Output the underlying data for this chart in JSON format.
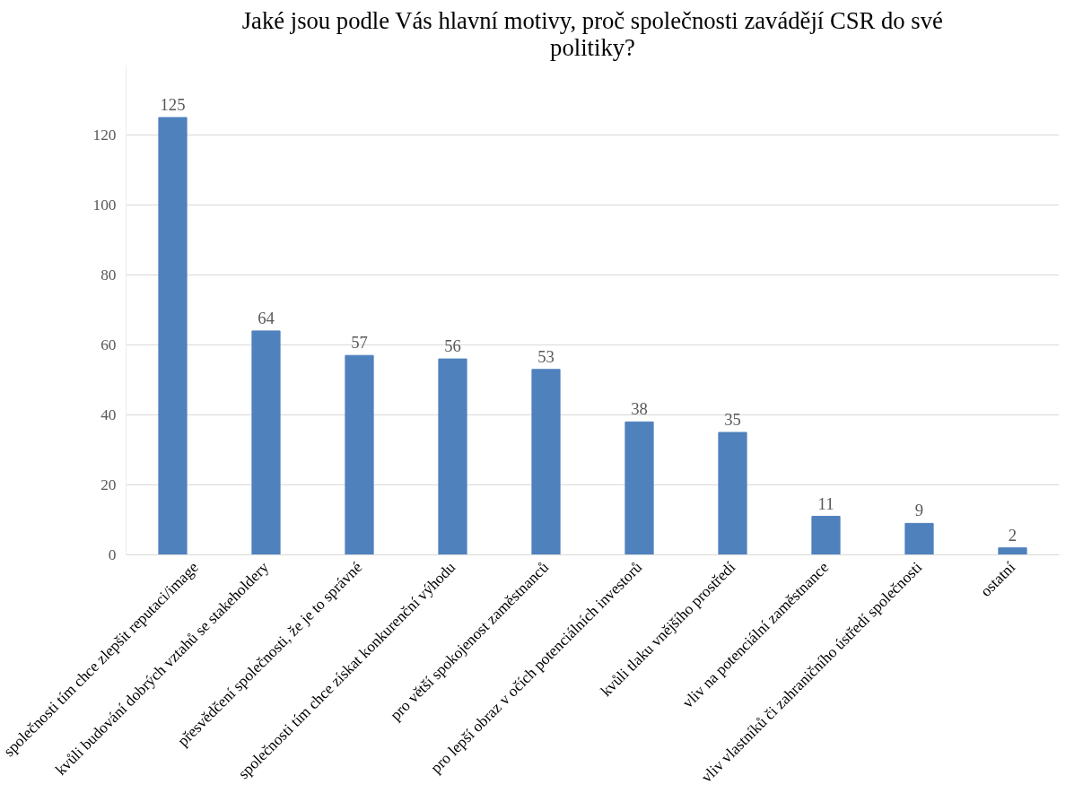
{
  "chart_data": {
    "type": "bar",
    "title": "Jaké jsou podle Vás hlavní motivy, proč společnosti zavádějí CSR do své politiky?",
    "categories": [
      "společnosti tím chce zlepšit reputaci/image",
      "kvůli budování dobrých vztahů se stakeholdery",
      "přesvědčení společnosti, že je to správné",
      "společnosti tím chce získat konkurenční výhodu",
      "pro větší spokojenost zaměstnanců",
      "pro lepší obraz v očích potenciálních investorů",
      "kvůli tlaku vnějšího prostředí",
      "vliv na potenciální zaměstnance",
      "vliv vlastníků či zahraničního ústředí společnosti",
      "ostatní"
    ],
    "values": [
      125,
      64,
      57,
      56,
      53,
      38,
      35,
      11,
      9,
      2
    ],
    "color": "#4f81bd",
    "ylim": [
      0,
      140
    ],
    "yticks": [
      0,
      20,
      40,
      60,
      80,
      100,
      120
    ],
    "grid": "y",
    "data_labels": true
  }
}
